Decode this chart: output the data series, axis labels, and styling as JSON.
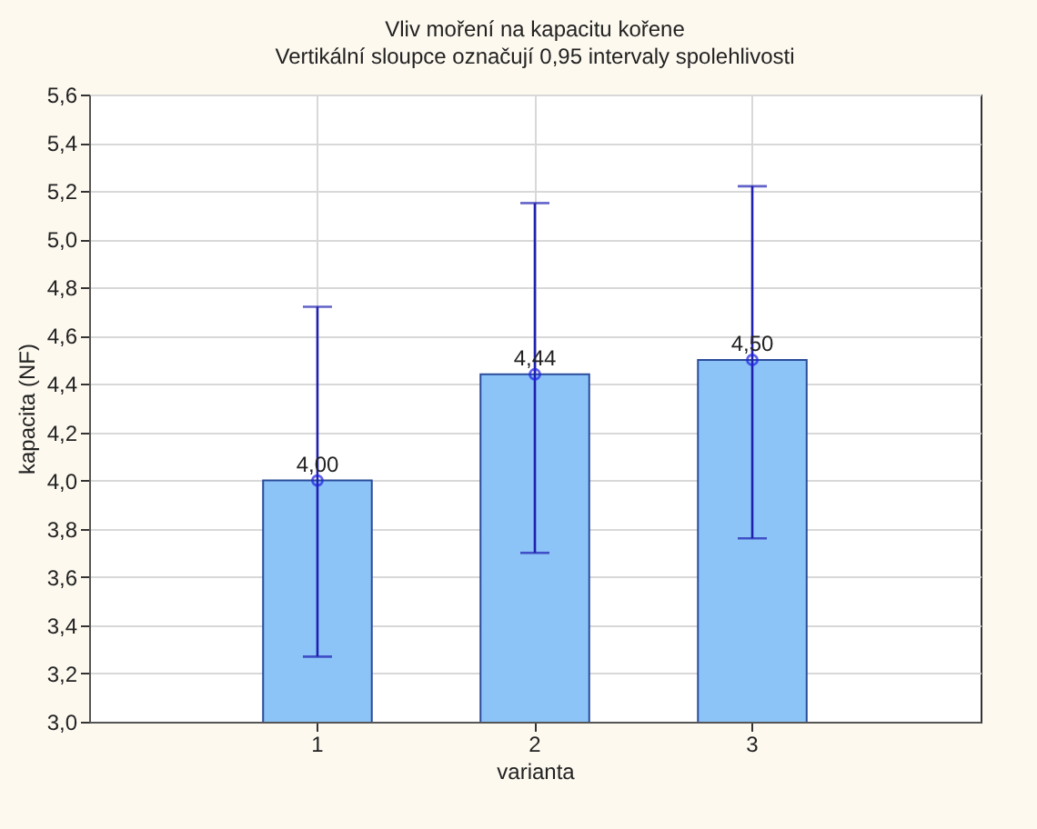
{
  "chart_data": {
    "type": "bar",
    "title": "Vliv moření na kapacitu kořene",
    "subtitle": "Vertikální sloupce označují 0,95 intervaly spolehlivosti",
    "xlabel": "varianta",
    "ylabel": "kapacita (NF)",
    "categories": [
      "1",
      "2",
      "3"
    ],
    "series": [
      {
        "color": "#8cc4f8",
        "values": [
          4.0,
          4.44,
          4.5
        ],
        "value_labels": [
          "4,00",
          "4,44",
          "4,50"
        ],
        "errors": [
          [
            3.27,
            4.72
          ],
          [
            3.7,
            5.15
          ],
          [
            3.76,
            5.22
          ]
        ]
      },
      {
        "type": "scatter",
        "color": "#2020e0",
        "x": [
          "1",
          "2",
          "3"
        ],
        "values": [
          4.0,
          4.44,
          4.5
        ],
        "marker": "circle"
      }
    ],
    "ylim": [
      3.0,
      5.6
    ],
    "yticks": [
      {
        "value": 3.0,
        "label": "3,0"
      },
      {
        "value": 3.2,
        "label": "3,2"
      },
      {
        "value": 3.4,
        "label": "3,4"
      },
      {
        "value": 3.6,
        "label": "3,6"
      },
      {
        "value": 3.8,
        "label": "3,8"
      },
      {
        "value": 4.0,
        "label": "4,0"
      },
      {
        "value": 4.2,
        "label": "4,2"
      },
      {
        "value": 4.4,
        "label": "4,4"
      },
      {
        "value": 4.6,
        "label": "4,6"
      },
      {
        "value": 4.8,
        "label": "4,8"
      },
      {
        "value": 5.0,
        "label": "5,0"
      },
      {
        "value": 5.2,
        "label": "5,2"
      },
      {
        "value": 5.4,
        "label": "5,4"
      },
      {
        "value": 5.6,
        "label": "5,6"
      }
    ],
    "grid": true
  }
}
